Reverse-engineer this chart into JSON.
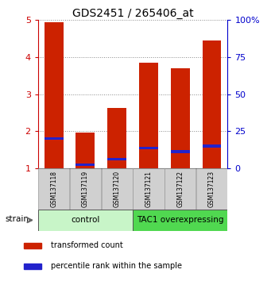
{
  "title": "GDS2451 / 265406_at",
  "samples": [
    "GSM137118",
    "GSM137119",
    "GSM137120",
    "GSM137121",
    "GSM137122",
    "GSM137123"
  ],
  "red_values": [
    4.93,
    1.96,
    2.63,
    3.85,
    3.7,
    4.45
  ],
  "blue_values": [
    1.77,
    1.07,
    1.22,
    1.52,
    1.42,
    1.57
  ],
  "bar_bottom": 1.0,
  "ylim_left": [
    1,
    5
  ],
  "ylim_right": [
    0,
    100
  ],
  "yticks_left": [
    1,
    2,
    3,
    4,
    5
  ],
  "yticks_right": [
    0,
    25,
    50,
    75,
    100
  ],
  "ytick_labels_right": [
    "0",
    "25",
    "50",
    "75",
    "100%"
  ],
  "groups": [
    {
      "label": "control",
      "samples": [
        0,
        1,
        2
      ],
      "color": "#c8f5c8"
    },
    {
      "label": "TAC1 overexpressing",
      "samples": [
        3,
        4,
        5
      ],
      "color": "#50d850"
    }
  ],
  "strain_label": "strain",
  "legend_items": [
    {
      "color": "#cc2200",
      "label": "transformed count"
    },
    {
      "color": "#2222cc",
      "label": "percentile rank within the sample"
    }
  ],
  "bar_color_red": "#cc2200",
  "bar_color_blue": "#2222cc",
  "bar_width": 0.6,
  "blue_bar_height": 0.07,
  "grid_color": "#888888",
  "bg_color": "#ffffff",
  "tick_color_left": "#cc0000",
  "tick_color_right": "#0000cc",
  "title_fontsize": 10,
  "tick_fontsize": 8,
  "sample_fontsize": 5.5,
  "group_fontsize": 7.5,
  "legend_fontsize": 7,
  "strain_fontsize": 7.5
}
